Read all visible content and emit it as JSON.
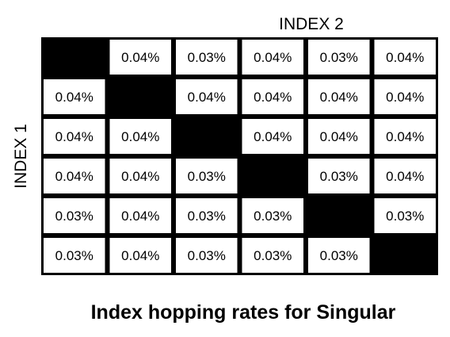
{
  "chart_data": {
    "type": "heatmap",
    "title": "Index hopping rates for Singular",
    "xlabel": "INDEX 2",
    "ylabel": "INDEX 1",
    "value_format": "percent",
    "values": [
      [
        null,
        0.04,
        0.03,
        0.04,
        0.03,
        0.04
      ],
      [
        0.04,
        null,
        0.04,
        0.04,
        0.04,
        0.04
      ],
      [
        0.04,
        0.04,
        null,
        0.04,
        0.04,
        0.04
      ],
      [
        0.04,
        0.04,
        0.03,
        null,
        0.03,
        0.04
      ],
      [
        0.03,
        0.04,
        0.03,
        0.03,
        null,
        0.03
      ],
      [
        0.03,
        0.04,
        0.03,
        0.03,
        0.03,
        null
      ]
    ],
    "labels": [
      [
        "",
        "0.04%",
        "0.03%",
        "0.04%",
        "0.03%",
        "0.04%"
      ],
      [
        "0.04%",
        "",
        "0.04%",
        "0.04%",
        "0.04%",
        "0.04%"
      ],
      [
        "0.04%",
        "0.04%",
        "",
        "0.04%",
        "0.04%",
        "0.04%"
      ],
      [
        "0.04%",
        "0.04%",
        "0.03%",
        "",
        "0.03%",
        "0.04%"
      ],
      [
        "0.03%",
        "0.04%",
        "0.03%",
        "0.03%",
        "",
        "0.03%"
      ],
      [
        "0.03%",
        "0.04%",
        "0.03%",
        "0.03%",
        "0.03%",
        ""
      ]
    ],
    "diagonal": "filled",
    "colors": {
      "diagonal_fill": "#000000",
      "cell_fill": "#ffffff",
      "border": "#000000",
      "text": "#000000"
    }
  }
}
